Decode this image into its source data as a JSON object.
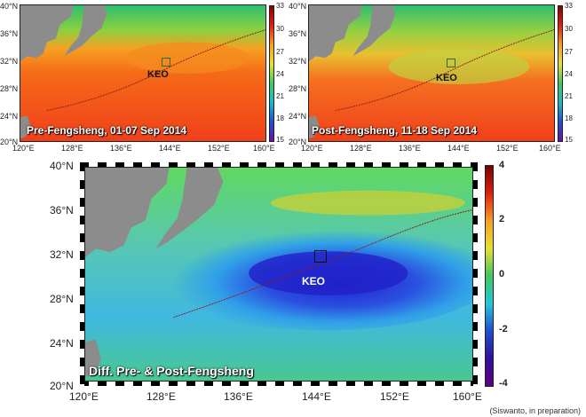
{
  "panels": {
    "pre": {
      "title": "Pre-Fengsheng, 01-07 Sep 2014",
      "colorbar_ticks": [
        "33",
        "30",
        "27",
        "24",
        "21",
        "18",
        "15"
      ],
      "keo_label": "KEO"
    },
    "post": {
      "title": "Post-Fengsheng, 11-18 Sep 2014",
      "colorbar_ticks": [
        "33",
        "30",
        "27",
        "24",
        "21",
        "18",
        "15"
      ],
      "keo_label": "KEO"
    },
    "diff": {
      "title": "Diff. Pre- & Post-Fengsheng",
      "colorbar_ticks": [
        "4",
        "2",
        "0",
        "-2",
        "-4"
      ],
      "keo_label": "KEO"
    }
  },
  "axes": {
    "small_lat": [
      "40°N",
      "36°N",
      "32°N",
      "28°N",
      "24°N",
      "20°N"
    ],
    "small_lon": [
      "120°E",
      "128°E",
      "136°E",
      "144°E",
      "152°E",
      "160°E"
    ],
    "big_lat": [
      "40°N",
      "36°N",
      "32°N",
      "28°N",
      "24°N",
      "20°N"
    ],
    "big_lon": [
      "120°E",
      "128°E",
      "136°E",
      "144°E",
      "152°E",
      "160°E"
    ]
  },
  "credit": "(Siswanto, in preparation)",
  "colors": {
    "land": "#8c8c8c",
    "sst_warm": "#f0401a",
    "sst_cool": "#38c86a",
    "diff_neg": "#2a2ad8",
    "diff_pos": "#e8d020",
    "track": "#8a2020"
  }
}
